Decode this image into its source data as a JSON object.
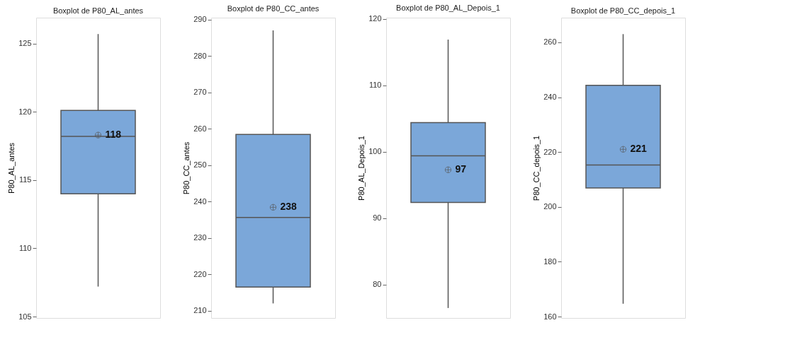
{
  "chart_data": [
    {
      "type": "box",
      "title": "Boxplot de P80_AL_antes",
      "ylabel": "P80_AL_antes",
      "categories": [
        null
      ],
      "color": "#7ba7d9",
      "tick_labels": "y",
      "marker": "circle",
      "boxes": [
        {
          "low": 107.2,
          "q1": 114.0,
          "median": 118.2,
          "q3": 120.1,
          "high": 125.7,
          "mean": 118.3
        }
      ],
      "ylim": [
        104.9,
        126.9
      ],
      "yticks": [
        105,
        110,
        115,
        120,
        125
      ],
      "annotations": [
        "118"
      ]
    },
    {
      "type": "box",
      "title": "Boxplot de P80_CC_antes",
      "ylabel": "P80_CC_antes",
      "categories": [
        null
      ],
      "color": "#7ba7d9",
      "tick_labels": "y",
      "marker": "circle",
      "boxes": [
        {
          "low": 212,
          "q1": 216.5,
          "median": 235.6,
          "q3": 258.4,
          "high": 287,
          "mean": 238.4
        }
      ],
      "ylim": [
        208,
        290.5
      ],
      "yticks": [
        210,
        220,
        230,
        240,
        250,
        260,
        270,
        280,
        290
      ],
      "annotations": [
        "238"
      ]
    },
    {
      "type": "box",
      "title": "Boxplot de P80_AL_Depois_1",
      "ylabel": "P80_AL_Depois_1",
      "categories": [
        null
      ],
      "color": "#7ba7d9",
      "tick_labels": "y",
      "marker": "circle",
      "boxes": [
        {
          "low": 76.5,
          "q1": 92.4,
          "median": 99.4,
          "q3": 104.4,
          "high": 116.9,
          "mean": 97.3
        }
      ],
      "ylim": [
        75,
        120.2
      ],
      "yticks": [
        80,
        90,
        100,
        110,
        120
      ],
      "annotations": [
        "97"
      ]
    },
    {
      "type": "box",
      "title": "Boxplot de P80_CC_depois_1",
      "ylabel": "P80_CC_depois_1",
      "categories": [
        null
      ],
      "color": "#7ba7d9",
      "tick_labels": "y",
      "marker": "circle",
      "boxes": [
        {
          "low": 164.7,
          "q1": 206.9,
          "median": 215.3,
          "q3": 244.3,
          "high": 263,
          "mean": 221
        }
      ],
      "ylim": [
        159.5,
        269
      ],
      "yticks": [
        160,
        180,
        200,
        220,
        240,
        260
      ],
      "annotations": [
        "221"
      ]
    }
  ]
}
